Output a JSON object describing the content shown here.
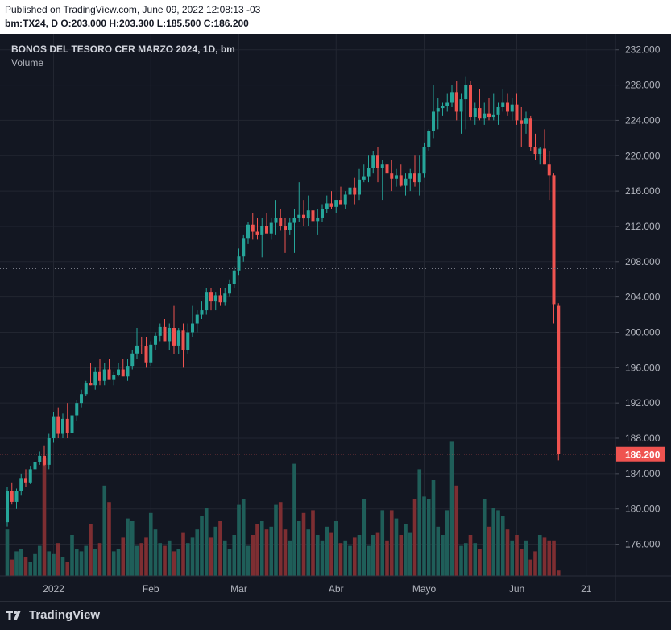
{
  "header": {
    "published": "Published on TradingView.com, June 09, 2022 12:08:13 -03",
    "ohlc": "bm:TX24, D  O:203.000  H:203.300  L:185.500  C:186.200"
  },
  "footer": {
    "brand": "TradingView",
    "brand_icon": "tradingview-logo-icon"
  },
  "colors": {
    "background": "#131722",
    "up": "#26a69a",
    "down": "#ef5350",
    "up_volume": "#1f5e59",
    "down_volume": "#7d2e32",
    "grid": "#222631",
    "axis_text": "#b2b5be"
  },
  "chart_data": {
    "type": "candlestick",
    "title": "BONOS DEL TESORO CER MARZO 2024, 1D, bm",
    "volume_label": "Volume",
    "ylim": [
      172.4,
      233.8
    ],
    "y_ticks": [
      "176.000",
      "180.000",
      "184.000",
      "188.000",
      "192.000",
      "196.000",
      "200.000",
      "204.000",
      "208.000",
      "212.000",
      "216.000",
      "220.000",
      "224.000",
      "228.000",
      "232.000"
    ],
    "y_tick_values": [
      176,
      180,
      184,
      188,
      192,
      196,
      200,
      204,
      208,
      212,
      216,
      220,
      224,
      228,
      232
    ],
    "x_ticks": [
      {
        "label": "2022",
        "index": 10
      },
      {
        "label": "Feb",
        "index": 31
      },
      {
        "label": "Mar",
        "index": 50
      },
      {
        "label": "Abr",
        "index": 71
      },
      {
        "label": "Mayo",
        "index": 90
      },
      {
        "label": "Jun",
        "index": 110
      },
      {
        "label": "21",
        "index": 125
      }
    ],
    "last_price": 186.2,
    "last_price_label": "186.200",
    "reference_line": 207.2,
    "candles": [
      [
        178.5,
        182.5,
        178.0,
        182.0
      ],
      [
        182.0,
        183.0,
        180.5,
        180.8
      ],
      [
        180.8,
        182.3,
        180.0,
        182.0
      ],
      [
        182.0,
        184.0,
        181.5,
        183.5
      ],
      [
        183.5,
        184.5,
        182.5,
        183.0
      ],
      [
        183.0,
        184.8,
        182.8,
        184.5
      ],
      [
        184.5,
        185.8,
        184.0,
        185.3
      ],
      [
        185.3,
        186.5,
        185.0,
        186.0
      ],
      [
        186.0,
        187.2,
        184.8,
        185.0
      ],
      [
        185.0,
        188.5,
        184.5,
        188.0
      ],
      [
        188.0,
        191.0,
        187.5,
        190.5
      ],
      [
        190.5,
        191.5,
        188.0,
        188.5
      ],
      [
        188.5,
        190.8,
        188.0,
        190.2
      ],
      [
        190.2,
        192.0,
        188.0,
        188.6
      ],
      [
        188.6,
        191.0,
        188.2,
        190.6
      ],
      [
        190.6,
        192.3,
        190.0,
        192.0
      ],
      [
        192.0,
        193.5,
        191.5,
        193.0
      ],
      [
        193.0,
        194.5,
        192.8,
        194.2
      ],
      [
        194.2,
        196.5,
        194.0,
        194.0
      ],
      [
        194.0,
        196.0,
        193.5,
        195.5
      ],
      [
        195.5,
        197.0,
        194.0,
        194.5
      ],
      [
        194.5,
        196.5,
        194.0,
        195.8
      ],
      [
        195.8,
        197.0,
        195.0,
        194.6
      ],
      [
        194.6,
        195.5,
        194.0,
        195.2
      ],
      [
        195.2,
        196.5,
        195.0,
        195.8
      ],
      [
        195.8,
        197.0,
        195.2,
        195.0
      ],
      [
        195.0,
        197.0,
        194.5,
        196.2
      ],
      [
        196.2,
        198.0,
        195.8,
        197.6
      ],
      [
        197.6,
        200.5,
        197.0,
        198.5
      ],
      [
        198.5,
        199.5,
        197.5,
        198.4
      ],
      [
        198.4,
        199.5,
        196.0,
        196.6
      ],
      [
        196.6,
        199.0,
        196.2,
        198.6
      ],
      [
        198.6,
        200.0,
        198.0,
        199.6
      ],
      [
        199.6,
        201.0,
        199.0,
        200.6
      ],
      [
        200.6,
        201.5,
        199.0,
        199.0
      ],
      [
        199.0,
        201.0,
        198.0,
        200.5
      ],
      [
        200.5,
        203.0,
        197.5,
        198.5
      ],
      [
        198.5,
        200.5,
        197.5,
        200.2
      ],
      [
        200.2,
        201.0,
        196.0,
        198.0
      ],
      [
        198.0,
        201.0,
        197.5,
        200.0
      ],
      [
        200.0,
        203.0,
        199.5,
        201.0
      ],
      [
        201.0,
        202.5,
        200.0,
        202.0
      ],
      [
        202.0,
        203.5,
        201.5,
        202.5
      ],
      [
        202.5,
        205.0,
        202.0,
        204.5
      ],
      [
        204.5,
        205.0,
        202.5,
        203.5
      ],
      [
        203.5,
        204.5,
        202.5,
        204.2
      ],
      [
        204.2,
        205.0,
        203.0,
        203.4
      ],
      [
        203.4,
        205.0,
        203.0,
        204.4
      ],
      [
        204.4,
        206.0,
        204.0,
        205.5
      ],
      [
        205.5,
        207.5,
        205.0,
        207.0
      ],
      [
        207.0,
        209.5,
        206.5,
        208.6
      ],
      [
        208.6,
        211.0,
        208.0,
        210.6
      ],
      [
        210.6,
        212.5,
        210.0,
        212.2
      ],
      [
        212.2,
        213.5,
        210.5,
        211.4
      ],
      [
        211.4,
        213.0,
        210.5,
        211.0
      ],
      [
        211.0,
        213.0,
        208.5,
        212.0
      ],
      [
        212.0,
        213.5,
        211.5,
        211.2
      ],
      [
        211.2,
        213.0,
        210.5,
        212.4
      ],
      [
        212.4,
        215.0,
        211.0,
        213.0
      ],
      [
        213.0,
        214.0,
        211.5,
        212.0
      ],
      [
        212.0,
        213.0,
        209.0,
        211.6
      ],
      [
        211.6,
        213.0,
        211.0,
        212.4
      ],
      [
        212.4,
        214.0,
        209.0,
        213.0
      ],
      [
        213.0,
        217.0,
        212.5,
        213.3
      ],
      [
        213.3,
        215.0,
        212.0,
        212.9
      ],
      [
        212.9,
        215.5,
        212.0,
        213.8
      ],
      [
        213.8,
        215.0,
        210.5,
        212.6
      ],
      [
        212.6,
        214.0,
        211.0,
        213.0
      ],
      [
        213.0,
        214.5,
        212.5,
        214.0
      ],
      [
        214.0,
        215.5,
        213.5,
        214.6
      ],
      [
        214.6,
        216.0,
        214.0,
        214.2
      ],
      [
        214.2,
        215.0,
        213.5,
        215.0
      ],
      [
        215.0,
        216.5,
        214.5,
        214.5
      ],
      [
        214.5,
        216.0,
        214.0,
        215.6
      ],
      [
        215.6,
        217.0,
        215.0,
        216.4
      ],
      [
        216.4,
        217.5,
        214.5,
        215.6
      ],
      [
        215.6,
        218.5,
        215.0,
        217.3
      ],
      [
        217.3,
        219.0,
        217.0,
        217.6
      ],
      [
        217.6,
        220.0,
        217.0,
        218.6
      ],
      [
        218.6,
        220.5,
        218.0,
        220.0
      ],
      [
        220.0,
        221.0,
        217.0,
        218.6
      ],
      [
        218.6,
        219.5,
        215.0,
        219.0
      ],
      [
        219.0,
        220.0,
        218.0,
        218.0
      ],
      [
        218.0,
        219.5,
        216.0,
        217.4
      ],
      [
        217.4,
        218.5,
        216.5,
        217.8
      ],
      [
        217.8,
        219.0,
        216.5,
        216.6
      ],
      [
        216.6,
        218.0,
        215.5,
        217.4
      ],
      [
        217.4,
        218.5,
        216.0,
        218.0
      ],
      [
        218.0,
        220.0,
        216.5,
        217.0
      ],
      [
        217.0,
        220.0,
        215.5,
        218.0
      ],
      [
        218.0,
        221.5,
        217.5,
        221.0
      ],
      [
        221.0,
        223.0,
        220.5,
        222.8
      ],
      [
        222.8,
        228.0,
        222.0,
        225.0
      ],
      [
        225.0,
        226.5,
        223.0,
        225.4
      ],
      [
        225.4,
        226.0,
        224.5,
        225.6
      ],
      [
        225.6,
        227.0,
        225.0,
        226.0
      ],
      [
        226.0,
        228.0,
        225.5,
        227.2
      ],
      [
        227.2,
        228.5,
        224.0,
        225.0
      ],
      [
        225.0,
        227.0,
        222.5,
        226.4
      ],
      [
        226.4,
        229.0,
        223.0,
        228.0
      ],
      [
        228.0,
        228.5,
        224.0,
        224.4
      ],
      [
        224.4,
        226.0,
        223.5,
        225.4
      ],
      [
        225.4,
        227.5,
        224.0,
        224.2
      ],
      [
        224.2,
        226.0,
        223.5,
        224.8
      ],
      [
        224.8,
        226.5,
        224.0,
        224.4
      ],
      [
        224.4,
        227.0,
        224.0,
        224.6
      ],
      [
        224.6,
        226.0,
        223.5,
        225.5
      ],
      [
        225.5,
        227.5,
        225.0,
        226.0
      ],
      [
        226.0,
        227.0,
        224.5,
        225.0
      ],
      [
        225.0,
        226.5,
        224.0,
        225.8
      ],
      [
        225.8,
        227.0,
        223.5,
        224.0
      ],
      [
        224.0,
        225.5,
        221.0,
        223.6
      ],
      [
        223.6,
        225.0,
        222.5,
        224.2
      ],
      [
        224.2,
        224.5,
        220.5,
        221.0
      ],
      [
        221.0,
        222.5,
        219.5,
        220.2
      ],
      [
        220.2,
        221.0,
        219.0,
        220.8
      ],
      [
        220.8,
        223.0,
        219.0,
        219.0
      ],
      [
        219.0,
        220.5,
        215.0,
        217.8
      ],
      [
        217.8,
        218.0,
        201.0,
        203.2
      ],
      [
        203.0,
        203.3,
        185.5,
        186.2
      ]
    ],
    "volume": [
      34,
      12,
      18,
      20,
      14,
      10,
      16,
      22,
      86,
      18,
      16,
      24,
      14,
      10,
      30,
      20,
      18,
      22,
      38,
      20,
      24,
      66,
      54,
      18,
      20,
      28,
      42,
      40,
      22,
      24,
      28,
      46,
      34,
      24,
      22,
      26,
      18,
      20,
      32,
      24,
      28,
      34,
      44,
      50,
      28,
      36,
      40,
      26,
      20,
      30,
      52,
      56,
      22,
      30,
      38,
      40,
      34,
      36,
      52,
      54,
      34,
      26,
      82,
      40,
      46,
      34,
      48,
      30,
      26,
      36,
      32,
      40,
      24,
      26,
      22,
      28,
      30,
      56,
      22,
      30,
      32,
      48,
      26,
      48,
      42,
      30,
      38,
      32,
      56,
      78,
      58,
      56,
      70,
      36,
      30,
      48,
      98,
      66,
      22,
      24,
      30,
      24,
      20,
      56,
      36,
      50,
      48,
      44,
      34,
      26,
      30,
      20,
      26,
      12,
      18,
      30,
      28,
      26,
      26,
      4
    ]
  }
}
